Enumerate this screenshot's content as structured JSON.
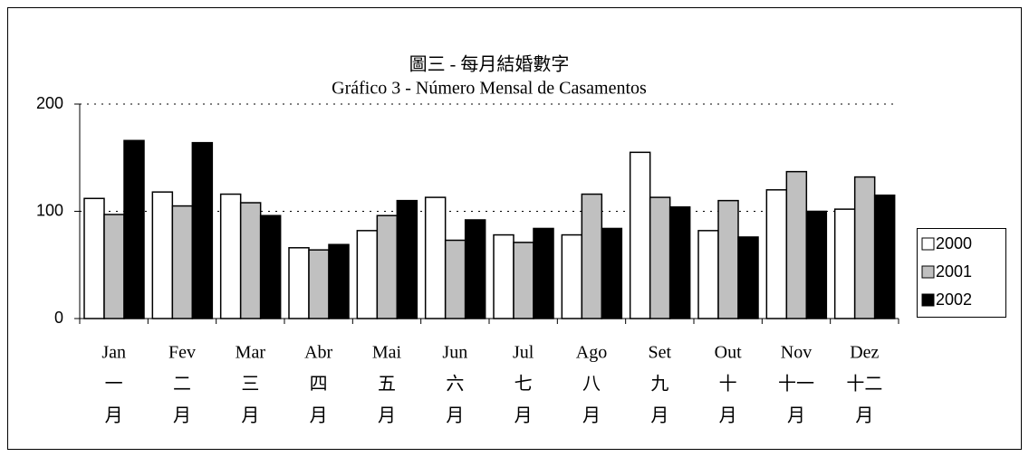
{
  "chart_data": {
    "type": "bar",
    "title": "圖三 - 每月結婚數字",
    "subtitle": "Gráfico 3 - Número Mensal de Casamentos",
    "categories": [
      [
        "Jan",
        "一",
        "月"
      ],
      [
        "Fev",
        "二",
        "月"
      ],
      [
        "Mar",
        "三",
        "月"
      ],
      [
        "Abr",
        "四",
        "月"
      ],
      [
        "Mai",
        "五",
        "月"
      ],
      [
        "Jun",
        "六",
        "月"
      ],
      [
        "Jul",
        "七",
        "月"
      ],
      [
        "Ago",
        "八",
        "月"
      ],
      [
        "Set",
        "九",
        "月"
      ],
      [
        "Out",
        "十",
        "月"
      ],
      [
        "Nov",
        "十一",
        "月"
      ],
      [
        "Dez",
        "十二",
        "月"
      ]
    ],
    "series": [
      {
        "name": "2000",
        "color": "#ffffff",
        "values": [
          112,
          118,
          116,
          66,
          82,
          113,
          78,
          78,
          155,
          82,
          120,
          102
        ]
      },
      {
        "name": "2001",
        "color": "#c0c0c0",
        "values": [
          97,
          105,
          108,
          64,
          96,
          73,
          71,
          116,
          113,
          110,
          137,
          132
        ]
      },
      {
        "name": "2002",
        "color": "#000000",
        "values": [
          166,
          164,
          96,
          69,
          110,
          92,
          84,
          84,
          104,
          76,
          100,
          115
        ]
      }
    ],
    "ylim": [
      0,
      200
    ],
    "yticks": [
      0,
      100,
      200
    ],
    "grid": true,
    "legend": "right"
  }
}
